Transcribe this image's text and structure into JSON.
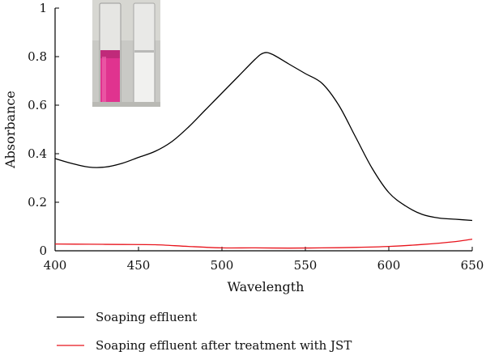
{
  "chart_data": {
    "type": "line",
    "title": "",
    "xlabel": "Wavelength",
    "ylabel": "Absorbance",
    "xlim": [
      400,
      650
    ],
    "ylim": [
      0,
      1
    ],
    "x_ticks": [
      400,
      450,
      500,
      550,
      600,
      650
    ],
    "x_tick_labels": [
      "400",
      "450",
      "500",
      "550",
      "600",
      "650"
    ],
    "y_ticks": [
      0,
      0.2,
      0.4,
      0.6,
      0.8,
      1
    ],
    "y_tick_labels": [
      "0",
      "0.2",
      "0.4",
      "0.6",
      "0.8",
      "1"
    ],
    "grid": false,
    "legend_position": "bottom",
    "inset": "photo of two vials: pink solution (before treatment) and clear solution (after treatment)",
    "series": [
      {
        "name": "Soaping effluent",
        "color": "#000000",
        "x": [
          400,
          410,
          420,
          430,
          440,
          450,
          460,
          470,
          480,
          490,
          500,
          510,
          520,
          525,
          530,
          540,
          550,
          560,
          570,
          580,
          590,
          600,
          610,
          620,
          630,
          640,
          650
        ],
        "y": [
          0.38,
          0.36,
          0.345,
          0.345,
          0.36,
          0.385,
          0.41,
          0.45,
          0.51,
          0.58,
          0.65,
          0.72,
          0.79,
          0.815,
          0.81,
          0.77,
          0.73,
          0.69,
          0.6,
          0.47,
          0.34,
          0.24,
          0.185,
          0.15,
          0.135,
          0.13,
          0.125
        ]
      },
      {
        "name": "Soaping effluent after treatment with JST",
        "color": "#e8141c",
        "x": [
          400,
          420,
          440,
          460,
          480,
          500,
          520,
          540,
          560,
          580,
          600,
          620,
          640,
          650
        ],
        "y": [
          0.028,
          0.027,
          0.026,
          0.025,
          0.018,
          0.012,
          0.012,
          0.011,
          0.012,
          0.014,
          0.018,
          0.026,
          0.038,
          0.048
        ]
      }
    ]
  }
}
